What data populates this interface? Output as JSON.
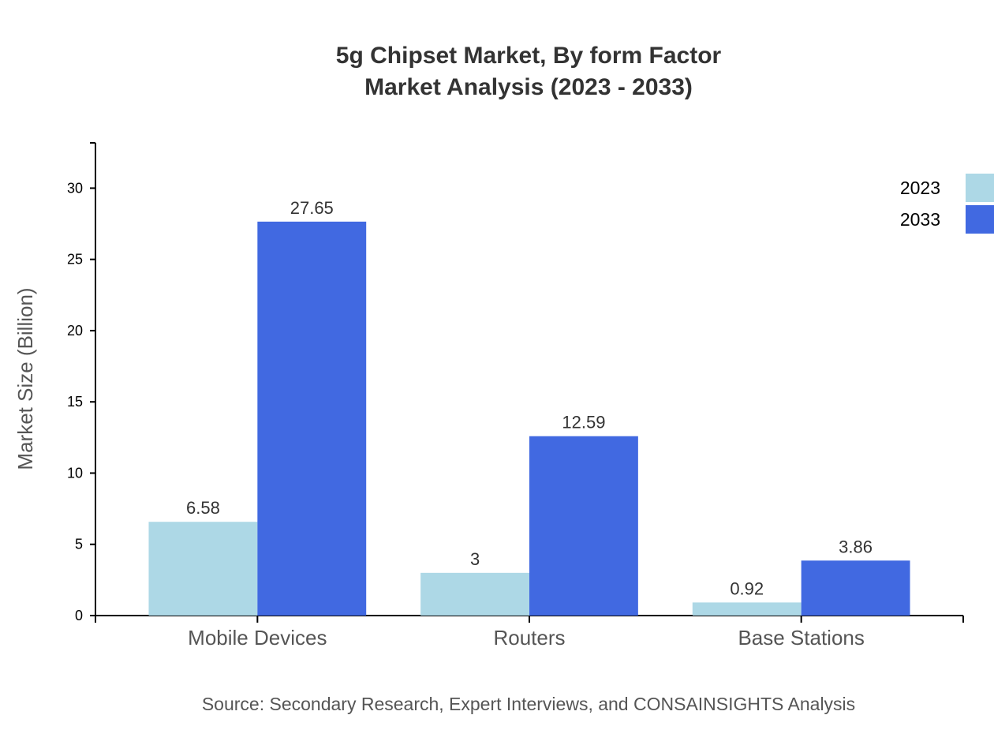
{
  "chart_data": {
    "type": "bar",
    "title": "5g Chipset Market, By form Factor",
    "subtitle": "Market Analysis (2023 - 2033)",
    "xlabel": "",
    "ylabel": "Market Size (Billion)",
    "categories": [
      "Mobile Devices",
      "Routers",
      "Base Stations"
    ],
    "series": [
      {
        "name": "2023",
        "values": [
          6.58,
          3,
          0.92
        ],
        "color": "#add8e6"
      },
      {
        "name": "2033",
        "values": [
          27.65,
          12.59,
          3.86
        ],
        "color": "#4169e1"
      }
    ],
    "data_labels": [
      [
        "6.58",
        "3",
        "0.92"
      ],
      [
        "27.65",
        "12.59",
        "3.86"
      ]
    ],
    "ylim": [
      0,
      33.18
    ],
    "yticks": [
      0,
      5,
      10,
      15,
      20,
      25,
      30
    ],
    "grid": false,
    "legend_position": "top-right",
    "source": "Source: Secondary Research, Expert Interviews, and CONSAINSIGHTS Analysis"
  }
}
